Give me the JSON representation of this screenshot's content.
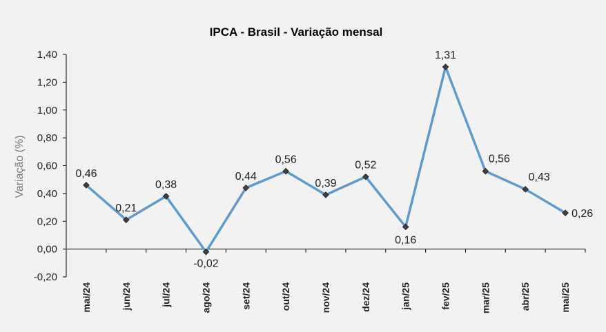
{
  "chart_data": {
    "type": "line",
    "title": "IPCA - Brasil - Variação mensal",
    "xlabel": "",
    "ylabel": "Variação (%)",
    "ylim": [
      -0.2,
      1.4
    ],
    "yticks": [
      -0.2,
      0,
      0.2,
      0.4,
      0.6,
      0.8,
      1.0,
      1.2,
      1.4
    ],
    "ytick_labels": [
      "-0,20",
      "0,00",
      "0,20",
      "0,40",
      "0,60",
      "0,80",
      "1,00",
      "1,20",
      "1,40"
    ],
    "grid": false,
    "categories": [
      "mai/24",
      "jun/24",
      "jul/24",
      "ago/24",
      "set/24",
      "out/24",
      "nov/24",
      "dez/24",
      "jan/25",
      "fev/25",
      "mar/25",
      "abr/25",
      "mai/25"
    ],
    "series": [
      {
        "values": [
          0.46,
          0.21,
          0.38,
          -0.02,
          0.44,
          0.56,
          0.39,
          0.52,
          0.16,
          1.31,
          0.56,
          0.43,
          0.26
        ],
        "labels": [
          "0,46",
          "0,21",
          "0,38",
          "-0,02",
          "0,44",
          "0,56",
          "0,39",
          "0,52",
          "0,16",
          "1,31",
          "0,56",
          "0,43",
          "0,26"
        ],
        "color": "#5b9bd5",
        "marker_color": "#404040"
      }
    ]
  }
}
